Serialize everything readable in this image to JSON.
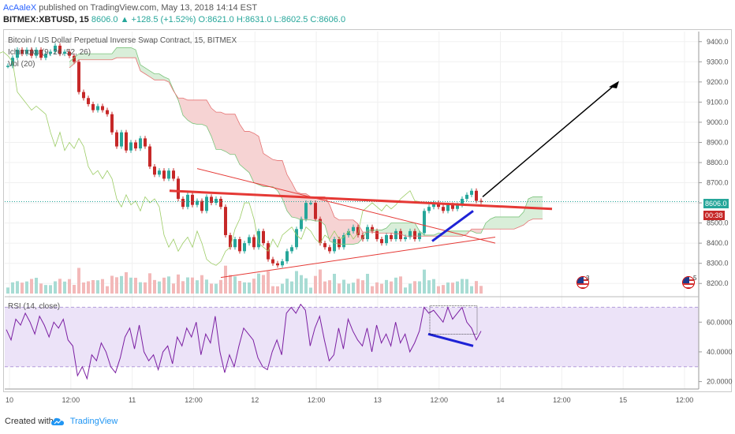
{
  "header": {
    "author": "AcAaleX",
    "published": "published on TradingView.com, May 13, 2018 14:14 EST",
    "symbol": "BITMEX:XBTUSD, 15",
    "last": "8606.0",
    "change": "▲ +128.5 (+1.52%)",
    "ohlc": "O:8621.0 H:8631.0 L:8602.5 C:8606.0"
  },
  "legend": {
    "title": "Bitcoin / US Dollar Perpetual Inverse Swap Contract, 15, BITMEX",
    "ichimoku": "Ichimoku (9, 26, 52, 26)",
    "volume": "Vol (20)",
    "rsi": "RSI (14, close)"
  },
  "price_tags": {
    "price": "8606.0",
    "countdown": "00:38"
  },
  "flags": [
    "3",
    "5"
  ],
  "footer": {
    "created_with": "Created with",
    "brand": "TradingView"
  },
  "colors": {
    "up": "#26a69a",
    "down": "#c62828",
    "rsi": "#7b1fa2",
    "rsi_band": "#ece3f8",
    "trendline_red": "#e53935",
    "trendline_blue": "#1e22d6",
    "arrow": "#000000",
    "cloud_bull": "#d9eed9",
    "cloud_bear": "#f6d3d3"
  },
  "chart_data": [
    {
      "type": "line",
      "title": "Bitcoin / US Dollar Perpetual Inverse Swap Contract, 15, BITMEX",
      "x_tick_labels": [
        "10",
        "12:00",
        "11",
        "12:00",
        "12",
        "12:00",
        "13",
        "12:00",
        "14",
        "12:00",
        "15",
        "12:00"
      ],
      "y_tick_labels": [
        "8200.0",
        "8300.0",
        "8400.0",
        "8500.0",
        "8600.0",
        "8700.0",
        "8800.0",
        "8900.0",
        "9000.0",
        "9100.0",
        "9200.0",
        "9300.0",
        "9400.0"
      ],
      "ylim": [
        8150,
        9450
      ],
      "series": [
        {
          "name": "",
          "values": [
            9280,
            9320,
            9360,
            9340,
            9360,
            9330,
            9360,
            9320,
            9340,
            9350,
            9380,
            9340,
            9350,
            9330,
            9300,
            9150,
            9120,
            9090,
            9060,
            9080,
            9060,
            9040,
            8950,
            8880,
            8950,
            8860,
            8900,
            8870,
            8920,
            8880,
            8780,
            8740,
            8760,
            8720,
            8760,
            8720,
            8620,
            8580,
            8640,
            8590,
            8610,
            8560,
            8630,
            8600,
            8620,
            8580,
            8440,
            8380,
            8420,
            8360,
            8400,
            8430,
            8380,
            8460,
            8400,
            8320,
            8300,
            8290,
            8310,
            8360,
            8380,
            8470,
            8520,
            8600,
            8600,
            8520,
            8400,
            8380,
            8360,
            8420,
            8380,
            8440,
            8460,
            8480,
            8440,
            8420,
            8480,
            8460,
            8420,
            8400,
            8440,
            8420,
            8460,
            8420,
            8430,
            8460,
            8420,
            8450,
            8560,
            8580,
            8600,
            8580,
            8560,
            8590,
            8570,
            8590,
            8620,
            8640,
            8660,
            8610,
            8606
          ]
        }
      ],
      "annotations": {
        "red_resistance": {
          "start": [
            8660,
            0.24
          ],
          "end": [
            8570,
            0.77
          ]
        },
        "blue_support_price": {
          "start": [
            8410,
            0.58
          ],
          "end": [
            8560,
            0.65
          ]
        },
        "target_arrow_end": 9200
      }
    },
    {
      "type": "line",
      "title": "RSI (14, close)",
      "y_tick_labels": [
        "20.0000",
        "40.0000",
        "60.0000"
      ],
      "ylim": [
        15,
        75
      ],
      "band": [
        30,
        70
      ],
      "series": [
        {
          "name": "",
          "values": [
            55,
            48,
            62,
            58,
            66,
            60,
            52,
            64,
            58,
            50,
            60,
            56,
            62,
            48,
            44,
            24,
            30,
            22,
            38,
            34,
            46,
            40,
            30,
            26,
            36,
            50,
            56,
            42,
            58,
            40,
            34,
            38,
            28,
            40,
            44,
            32,
            50,
            44,
            56,
            50,
            60,
            38,
            52,
            46,
            64,
            40,
            26,
            38,
            30,
            44,
            56,
            52,
            48,
            36,
            30,
            28,
            40,
            48,
            38,
            66,
            70,
            66,
            72,
            68,
            44,
            56,
            64,
            48,
            34,
            38,
            56,
            42,
            62,
            54,
            48,
            44,
            56,
            40,
            58,
            46,
            52,
            44,
            60,
            46,
            52,
            40,
            46,
            54,
            70,
            66,
            68,
            64,
            60,
            70,
            62,
            66,
            70,
            60,
            56,
            48,
            54
          ]
        }
      ],
      "annotations": {
        "blue_divergence": {
          "start": [
            52,
            0.62
          ],
          "end": [
            44,
            0.69
          ]
        }
      }
    }
  ]
}
